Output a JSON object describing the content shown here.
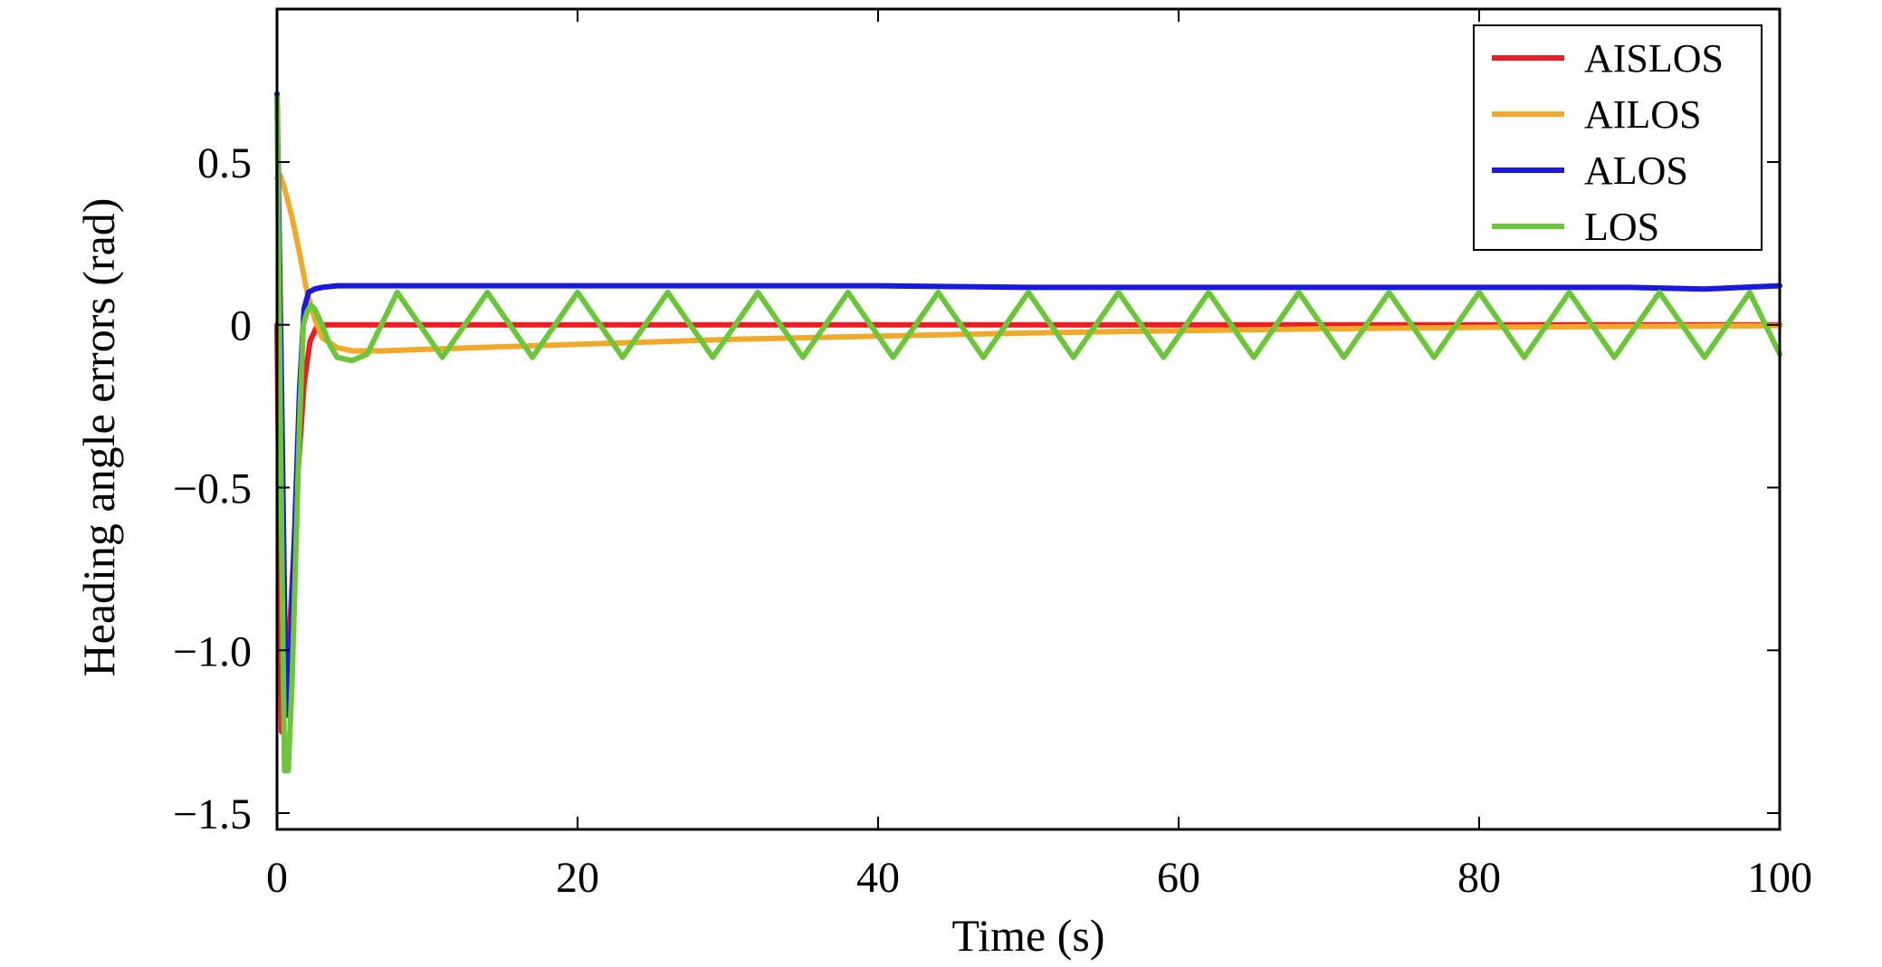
{
  "chart_data": {
    "type": "line",
    "title": "",
    "xlabel": "Time (s)",
    "ylabel": "Heading angle errors (rad)",
    "xlim": [
      0,
      100
    ],
    "ylim": [
      -1.55,
      0.97
    ],
    "xticks": [
      0,
      20,
      40,
      60,
      80,
      100
    ],
    "xtick_labels": [
      "0",
      "20",
      "40",
      "60",
      "80",
      "100"
    ],
    "yticks": [
      0.5,
      0,
      -0.5,
      -1.0,
      -1.5
    ],
    "ytick_labels": [
      "0.5",
      "0",
      "−0.5",
      "−1.0",
      "−1.5"
    ],
    "grid": false,
    "legend_position": "top-right",
    "series": [
      {
        "name": "AISLOS",
        "color": "#ee1c24",
        "x": [
          0,
          0.3,
          0.6,
          1.0,
          1.4,
          1.8,
          2.2,
          2.6,
          3.0,
          4,
          5,
          10,
          20,
          40,
          60,
          80,
          100
        ],
        "y": [
          0.0,
          -1.25,
          -1.15,
          -0.8,
          -0.45,
          -0.18,
          -0.05,
          -0.01,
          0.0,
          0.0,
          0.0,
          0.0,
          0.0,
          0.0,
          0.0,
          0.0,
          0.0
        ]
      },
      {
        "name": "AILOS",
        "color": "#f0a92b",
        "x": [
          0,
          0.2,
          0.5,
          1.0,
          1.5,
          2.0,
          2.5,
          3.0,
          4.0,
          5.0,
          7,
          10,
          20,
          30,
          40,
          50,
          60,
          70,
          80,
          90,
          100
        ],
        "y": [
          0.45,
          0.46,
          0.42,
          0.33,
          0.22,
          0.1,
          0.02,
          -0.04,
          -0.07,
          -0.08,
          -0.08,
          -0.075,
          -0.06,
          -0.045,
          -0.035,
          -0.025,
          -0.018,
          -0.012,
          -0.008,
          -0.005,
          -0.003
        ]
      },
      {
        "name": "ALOS",
        "color": "#1a1adf",
        "x": [
          0,
          0.3,
          0.6,
          0.9,
          1.2,
          1.5,
          1.8,
          2.1,
          2.5,
          3.0,
          4,
          5,
          10,
          20,
          30,
          40,
          50,
          60,
          70,
          80,
          90,
          95,
          100
        ],
        "y": [
          0.71,
          -0.2,
          -1.2,
          -1.0,
          -0.6,
          -0.2,
          0.05,
          0.1,
          0.11,
          0.115,
          0.12,
          0.12,
          0.12,
          0.12,
          0.12,
          0.12,
          0.115,
          0.115,
          0.115,
          0.115,
          0.115,
          0.11,
          0.12
        ]
      },
      {
        "name": "LOS",
        "color": "#6cc63a",
        "x": [
          0,
          0.25,
          0.5,
          0.75,
          1.0,
          1.25,
          1.5,
          1.75,
          2.0,
          2.25,
          2.5,
          3.0,
          3.5,
          4,
          5,
          6,
          8,
          11,
          14,
          17,
          20,
          23,
          26,
          29,
          32,
          35,
          38,
          41,
          44,
          47,
          50,
          53,
          56,
          59,
          62,
          65,
          68,
          71,
          74,
          77,
          80,
          83,
          86,
          89,
          92,
          95,
          98,
          100
        ],
        "y": [
          0.7,
          -0.4,
          -1.37,
          -1.37,
          -1.1,
          -0.7,
          -0.3,
          0.0,
          0.04,
          0.06,
          0.05,
          0.0,
          -0.06,
          -0.1,
          -0.11,
          -0.09,
          0.1,
          -0.1,
          0.1,
          -0.1,
          0.1,
          -0.1,
          0.1,
          -0.1,
          0.1,
          -0.1,
          0.1,
          -0.1,
          0.1,
          -0.1,
          0.1,
          -0.1,
          0.1,
          -0.1,
          0.1,
          -0.1,
          0.1,
          -0.1,
          0.1,
          -0.1,
          0.1,
          -0.1,
          0.1,
          -0.1,
          0.1,
          -0.1,
          0.1,
          -0.09
        ]
      }
    ]
  }
}
